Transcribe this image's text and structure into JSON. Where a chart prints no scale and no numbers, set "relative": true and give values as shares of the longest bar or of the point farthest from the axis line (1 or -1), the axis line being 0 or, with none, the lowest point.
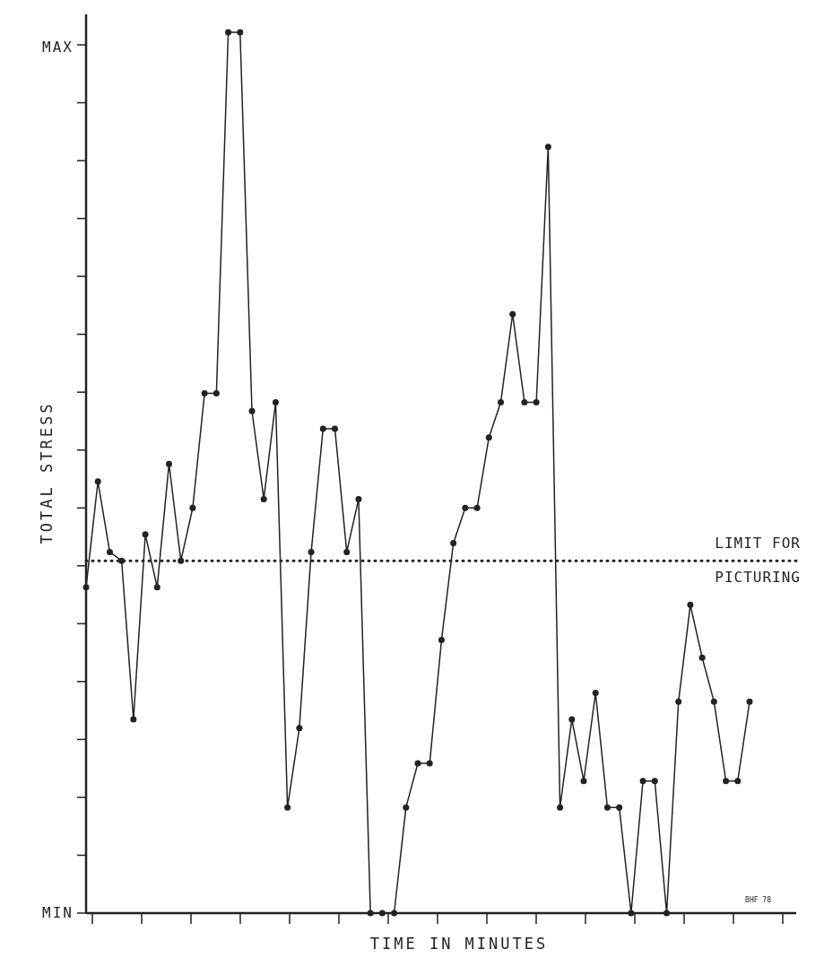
{
  "chart_data": {
    "type": "line",
    "relative": true,
    "xlabel": "TIME IN MINUTES",
    "ylabel": "TOTAL STRESS",
    "marker": "circle",
    "line_style": "solid",
    "categories": [
      null,
      null,
      null,
      null,
      null,
      null,
      null,
      null,
      null,
      null,
      null,
      null,
      null,
      null,
      null,
      null,
      null,
      null,
      null,
      null,
      null,
      null,
      null,
      null,
      null,
      null,
      null,
      null,
      null,
      null,
      null,
      null,
      null,
      null,
      null,
      null,
      null,
      null,
      null,
      null,
      null,
      null,
      null,
      null,
      null,
      null,
      null,
      null,
      null,
      null,
      null,
      null,
      null,
      null,
      null,
      null,
      null
    ],
    "series": [
      {
        "color": "#222222",
        "values": [
          0.37,
          0.49,
          0.41,
          0.4,
          0.22,
          0.43,
          0.37,
          0.51,
          0.4,
          0.46,
          0.59,
          0.59,
          1.0,
          1.0,
          0.57,
          0.47,
          0.58,
          0.12,
          0.21,
          0.41,
          0.55,
          0.55,
          0.41,
          0.47,
          0,
          0,
          0,
          0.12,
          0.17,
          0.17,
          0.31,
          0.42,
          0.46,
          0.46,
          0.54,
          0.58,
          0.68,
          0.58,
          0.58,
          0.87,
          0.12,
          0.22,
          0.15,
          0.25,
          0.12,
          0.12,
          0,
          0.15,
          0.15,
          0,
          0.24,
          0.35,
          0.29,
          0.24,
          0.15,
          0.15,
          0.24
        ]
      }
    ],
    "ref_lines": [
      {
        "axis": "y",
        "value": 0.4,
        "label": "LIMIT FOR PICTURING",
        "line_style": "dotted",
        "color": "#222222"
      }
    ],
    "annotations": [
      "MAX",
      "MIN",
      "BHF 78"
    ]
  }
}
